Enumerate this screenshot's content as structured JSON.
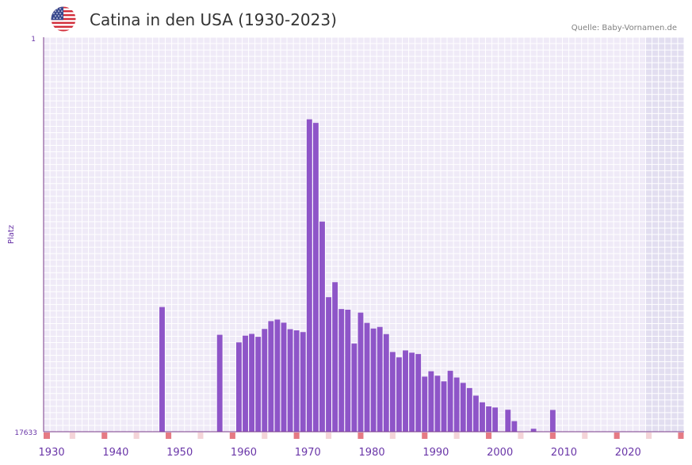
{
  "header": {
    "title": "Catina in den USA (1930-2023)",
    "source": "Quelle: Baby-Vornamen.de",
    "flag_icon": "us-flag-icon"
  },
  "colors": {
    "bar": "#8e55c8",
    "axis": "#7a3a8a",
    "tick_label": "#6a36a8",
    "grid_bg": "#efeaf7",
    "future_bg": "#e2def0",
    "decade_marker": "#e57a84",
    "midyear_marker": "#f4d4d8"
  },
  "chart_data": {
    "type": "bar",
    "title": "Catina in den USA (1930-2023)",
    "ylabel": "Platz",
    "xlabel": "",
    "y_inverted": true,
    "ylim": [
      1,
      17633
    ],
    "y_ticks": [
      "1",
      "17633"
    ],
    "x_ticks": [
      1930,
      1940,
      1950,
      1960,
      1970,
      1980,
      1990,
      2000,
      2010,
      2020
    ],
    "xlim": [
      1929,
      2028
    ],
    "years": [
      1947,
      1956,
      1959,
      1960,
      1961,
      1962,
      1963,
      1964,
      1965,
      1966,
      1967,
      1968,
      1969,
      1970,
      1971,
      1972,
      1973,
      1974,
      1975,
      1976,
      1977,
      1978,
      1979,
      1980,
      1981,
      1982,
      1983,
      1984,
      1985,
      1986,
      1987,
      1988,
      1989,
      1990,
      1991,
      1992,
      1993,
      1994,
      1995,
      1996,
      1997,
      1998,
      1999,
      2001,
      2002,
      2005,
      2008
    ],
    "values": [
      12060,
      13300,
      13640,
      13340,
      13260,
      13390,
      13040,
      12690,
      12620,
      12760,
      13050,
      13100,
      13180,
      3670,
      3830,
      8240,
      11620,
      10950,
      12150,
      12180,
      13690,
      12310,
      12770,
      13020,
      12950,
      13270,
      14070,
      14310,
      14000,
      14100,
      14160,
      15170,
      14930,
      15130,
      15380,
      14910,
      15210,
      15450,
      15680,
      16020,
      16320,
      16500,
      16550,
      16650,
      17160,
      17500,
      16660
    ]
  }
}
